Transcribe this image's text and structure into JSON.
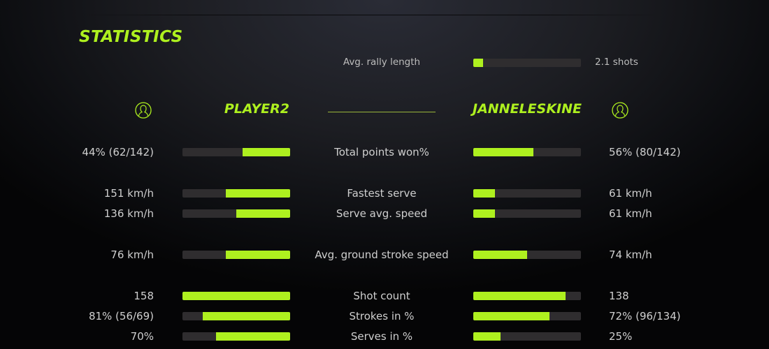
{
  "title": "STATISTICS",
  "colors": {
    "accent": "#aef01f",
    "bar_bg": "#2f2d2f"
  },
  "rally": {
    "label": "Avg. rally length",
    "value": "2.1 shots",
    "fill": 0.09
  },
  "players": {
    "left": "PLAYER2",
    "right": "JANNELESKINE",
    "icon": "user-icon"
  },
  "stats": [
    {
      "label": "Total points won%",
      "left": "44% (62/142)",
      "right": "56% (80/142)",
      "left_fill": 0.44,
      "right_fill": 0.56
    },
    {
      "label": "Fastest serve",
      "left": "151 km/h",
      "right": "61 km/h",
      "left_fill": 0.6,
      "right_fill": 0.2
    },
    {
      "label": "Serve avg. speed",
      "left": "136 km/h",
      "right": "61 km/h",
      "left_fill": 0.5,
      "right_fill": 0.2
    },
    {
      "label": "Avg. ground stroke speed",
      "left": "76 km/h",
      "right": "74 km/h",
      "left_fill": 0.6,
      "right_fill": 0.5
    },
    {
      "label": "Shot count",
      "left": "158",
      "right": "138",
      "left_fill": 1.0,
      "right_fill": 0.86
    },
    {
      "label": "Strokes in %",
      "left": "81% (56/69)",
      "right": "72% (96/134)",
      "left_fill": 0.81,
      "right_fill": 0.71
    },
    {
      "label": "Serves in %",
      "left": "70%",
      "right": "25%",
      "left_fill": 0.69,
      "right_fill": 0.25
    }
  ]
}
